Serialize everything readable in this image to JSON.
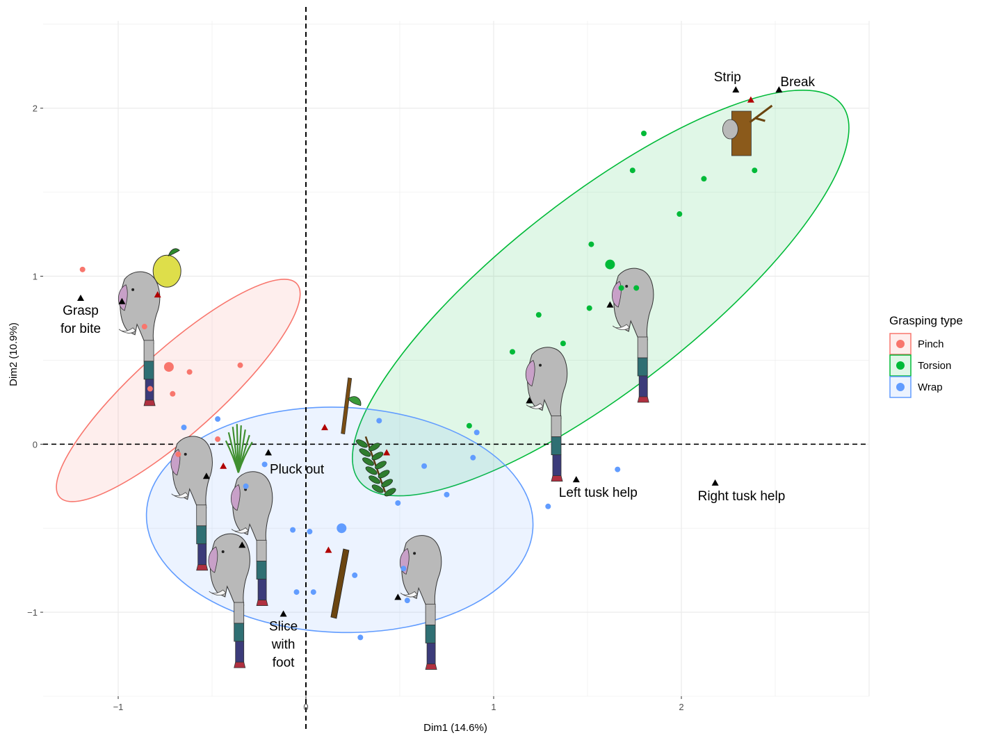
{
  "chart_data": {
    "type": "scatter",
    "xlabel": "Dim1 (14.6%)",
    "ylabel": "Dim2 (10.9%)",
    "xlim": [
      -1.4,
      3.0
    ],
    "ylim": [
      -1.5,
      2.52
    ],
    "x_ticks": [
      -1,
      0,
      1,
      2
    ],
    "y_ticks": [
      -1,
      0,
      1,
      2
    ],
    "grid": true,
    "reference_lines": {
      "x": 0,
      "y": 0,
      "style": "dashed"
    },
    "legend": {
      "title": "Grasping type",
      "position": "right",
      "entries": [
        "Pinch",
        "Torsion",
        "Wrap"
      ]
    },
    "colors": {
      "Pinch": "#F8766D",
      "Torsion": "#00BA38",
      "Wrap": "#619CFF",
      "supplementary": "#000000",
      "modality": "#B00000"
    },
    "series": [
      {
        "name": "Pinch",
        "ellipse": {
          "cx": -0.68,
          "cy": 0.32,
          "rx": 0.85,
          "ry": 0.25,
          "angle_deg": 42
        },
        "centroid": [
          -0.73,
          0.46
        ],
        "points": [
          [
            -1.19,
            1.04
          ],
          [
            -0.86,
            0.7
          ],
          [
            -0.62,
            0.43
          ],
          [
            -0.35,
            0.47
          ],
          [
            -0.83,
            0.33
          ],
          [
            -0.71,
            0.3
          ],
          [
            -0.47,
            0.03
          ],
          [
            -0.68,
            -0.06
          ]
        ]
      },
      {
        "name": "Torsion",
        "ellipse": {
          "cx": 1.57,
          "cy": 0.9,
          "rx": 1.63,
          "ry": 0.57,
          "angle_deg": 38
        },
        "centroid": [
          1.62,
          1.07
        ],
        "points": [
          [
            1.8,
            1.85
          ],
          [
            1.74,
            1.63
          ],
          [
            2.12,
            1.58
          ],
          [
            2.39,
            1.63
          ],
          [
            1.99,
            1.37
          ],
          [
            1.52,
            1.19
          ],
          [
            1.68,
            0.93
          ],
          [
            1.76,
            0.93
          ],
          [
            1.51,
            0.81
          ],
          [
            1.24,
            0.77
          ],
          [
            1.37,
            0.6
          ],
          [
            1.1,
            0.55
          ],
          [
            0.87,
            0.11
          ]
        ]
      },
      {
        "name": "Wrap",
        "ellipse": {
          "cx": 0.18,
          "cy": -0.45,
          "rx": 1.03,
          "ry": 0.67,
          "angle_deg": -2
        },
        "centroid": [
          0.19,
          -0.5
        ],
        "points": [
          [
            -0.65,
            0.1
          ],
          [
            -0.47,
            0.15
          ],
          [
            -0.32,
            -0.25
          ],
          [
            -0.22,
            -0.12
          ],
          [
            -0.07,
            -0.51
          ],
          [
            0.02,
            -0.52
          ],
          [
            0.39,
            0.14
          ],
          [
            0.91,
            0.07
          ],
          [
            0.89,
            -0.08
          ],
          [
            0.63,
            -0.13
          ],
          [
            0.75,
            -0.3
          ],
          [
            0.49,
            -0.35
          ],
          [
            0.26,
            -0.78
          ],
          [
            0.52,
            -0.74
          ],
          [
            0.54,
            -0.93
          ],
          [
            0.29,
            -1.15
          ],
          [
            -0.05,
            -0.88
          ],
          [
            0.04,
            -0.88
          ],
          [
            1.29,
            -0.37
          ],
          [
            1.66,
            -0.15
          ]
        ]
      }
    ],
    "supplementary_points": [
      {
        "label": "Grasp\nfor bite",
        "x": -1.2,
        "y": 0.87
      },
      {
        "label": "",
        "x": -0.98,
        "y": 0.85
      },
      {
        "label": "Pluck out",
        "x": -0.2,
        "y": -0.05
      },
      {
        "label": "",
        "x": -0.53,
        "y": -0.19
      },
      {
        "label": "",
        "x": -0.34,
        "y": -0.6
      },
      {
        "label": "Slice\nwith\nfoot",
        "x": -0.12,
        "y": -1.01
      },
      {
        "label": "",
        "x": 0.49,
        "y": -0.91
      },
      {
        "label": "",
        "x": 1.19,
        "y": 0.26
      },
      {
        "label": "",
        "x": 1.62,
        "y": 0.83
      },
      {
        "label": "Left tusk help",
        "x": 1.44,
        "y": -0.21
      },
      {
        "label": "Right tusk help",
        "x": 2.18,
        "y": -0.23
      },
      {
        "label": "Strip",
        "x": 2.29,
        "y": 2.11
      },
      {
        "label": "Break",
        "x": 2.52,
        "y": 2.11
      }
    ],
    "modality_points": [
      {
        "x": -0.79,
        "y": 0.89
      },
      {
        "x": -0.44,
        "y": -0.13
      },
      {
        "x": 0.1,
        "y": 0.1
      },
      {
        "x": 0.43,
        "y": -0.05
      },
      {
        "x": 0.12,
        "y": -0.63
      },
      {
        "x": 2.37,
        "y": 2.05
      }
    ],
    "pictograms": [
      {
        "icon": "lemon-icon",
        "x": -0.74,
        "y": 1.03
      },
      {
        "icon": "grass-icon",
        "x": -0.36,
        "y": -0.07
      },
      {
        "icon": "branch-icon",
        "x": 0.21,
        "y": 0.23
      },
      {
        "icon": "leafy-branch-icon",
        "x": 0.37,
        "y": -0.12
      },
      {
        "icon": "stick-icon",
        "x": 0.17,
        "y": -0.83
      },
      {
        "icon": "tree-stump-icon",
        "x": 2.32,
        "y": 1.85
      },
      {
        "icon": "elephant-trunk-icon",
        "x": -0.87,
        "y": 0.61
      },
      {
        "icon": "elephant-trunk-icon",
        "x": -0.59,
        "y": -0.37
      },
      {
        "icon": "elephant-trunk-icon",
        "x": -0.27,
        "y": -0.58
      },
      {
        "icon": "elephant-trunk-icon",
        "x": -0.39,
        "y": -0.95
      },
      {
        "icon": "elephant-trunk-icon",
        "x": 0.63,
        "y": -0.96
      },
      {
        "icon": "elephant-trunk-icon",
        "x": 1.3,
        "y": 0.16
      },
      {
        "icon": "elephant-trunk-icon",
        "x": 1.76,
        "y": 0.63
      }
    ]
  }
}
